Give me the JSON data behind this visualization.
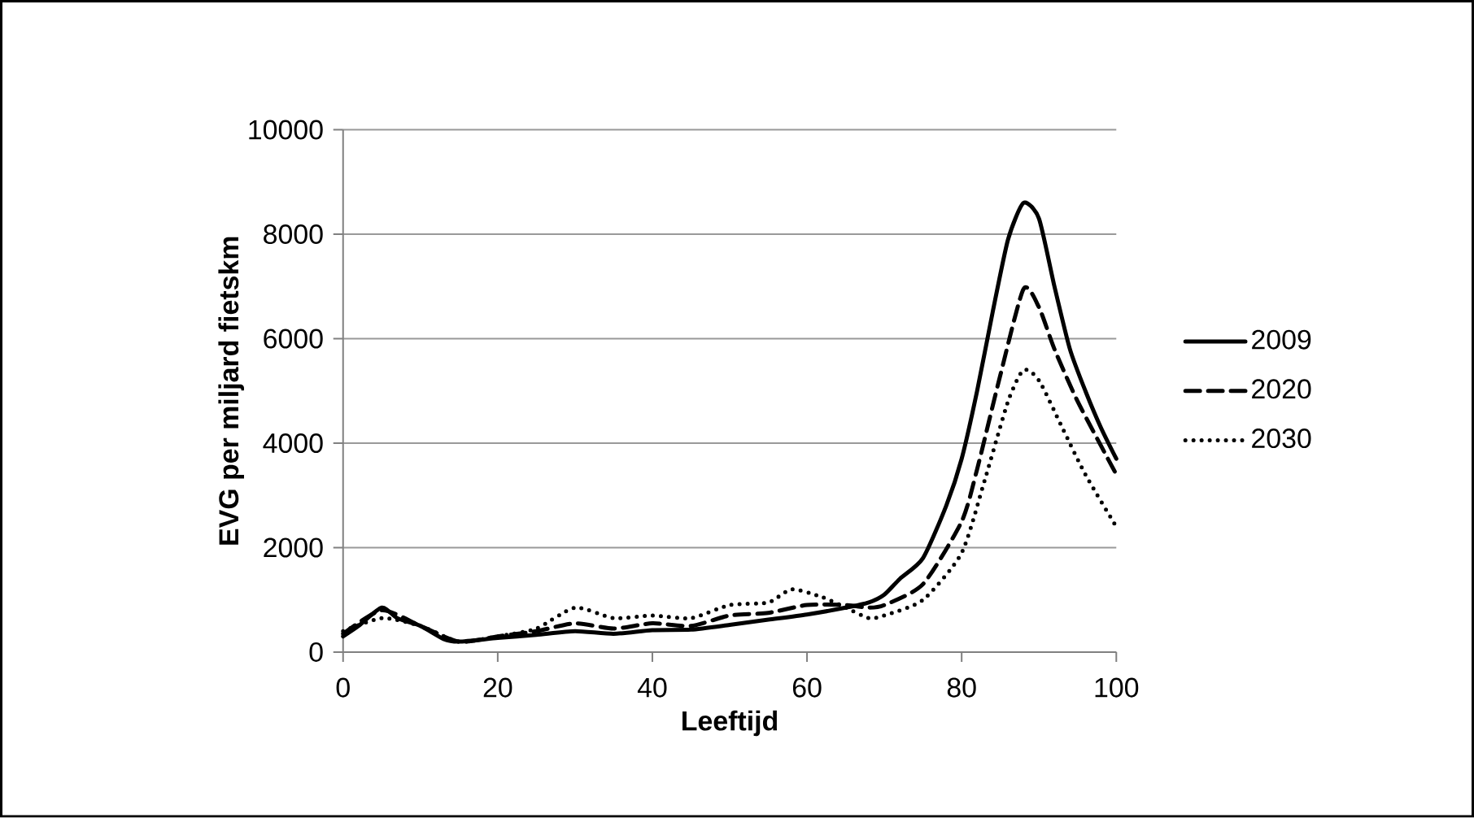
{
  "chart_data": {
    "type": "line",
    "xlabel": "Leeftijd",
    "ylabel": "EVG per miljard fietskm",
    "xlim": [
      0,
      100
    ],
    "xticks": [
      0,
      20,
      40,
      60,
      80,
      100
    ],
    "ylim": [
      0,
      10000
    ],
    "yticks": [
      0,
      2000,
      4000,
      6000,
      8000,
      10000
    ],
    "grid": "y",
    "legend": "right",
    "series": [
      {
        "name": "2009",
        "color": "#000000",
        "line_style": "solid",
        "x": [
          0,
          2,
          5,
          7,
          10,
          13,
          15,
          20,
          25,
          30,
          35,
          40,
          45,
          50,
          55,
          60,
          65,
          68,
          70,
          72,
          75,
          78,
          80,
          82,
          84,
          86,
          88,
          90,
          92,
          94,
          96,
          98,
          100
        ],
        "values": [
          300,
          500,
          850,
          650,
          500,
          250,
          200,
          270,
          330,
          400,
          350,
          420,
          430,
          520,
          620,
          720,
          850,
          950,
          1100,
          1400,
          1800,
          2800,
          3700,
          5000,
          6500,
          7900,
          8600,
          8300,
          7000,
          5800,
          5000,
          4300,
          3700
        ]
      },
      {
        "name": "2020",
        "color": "#000000",
        "line_style": "dashed",
        "x": [
          0,
          5,
          10,
          15,
          20,
          25,
          30,
          35,
          40,
          45,
          50,
          55,
          60,
          65,
          68,
          70,
          75,
          80,
          82,
          85,
          88,
          90,
          92,
          95,
          100
        ],
        "values": [
          350,
          800,
          500,
          200,
          300,
          400,
          550,
          450,
          550,
          500,
          700,
          750,
          900,
          900,
          850,
          900,
          1300,
          2500,
          3500,
          5300,
          6950,
          6600,
          5800,
          4800,
          3400
        ]
      },
      {
        "name": "2030",
        "color": "#000000",
        "line_style": "dotted",
        "x": [
          0,
          5,
          10,
          15,
          20,
          25,
          30,
          35,
          40,
          45,
          50,
          55,
          58,
          62,
          65,
          68,
          70,
          75,
          80,
          83,
          86,
          88,
          90,
          93,
          96,
          100
        ],
        "values": [
          400,
          650,
          500,
          200,
          300,
          450,
          850,
          650,
          700,
          650,
          900,
          950,
          1200,
          1050,
          850,
          650,
          700,
          1000,
          1900,
          3300,
          4800,
          5400,
          5200,
          4300,
          3400,
          2400
        ]
      }
    ]
  }
}
